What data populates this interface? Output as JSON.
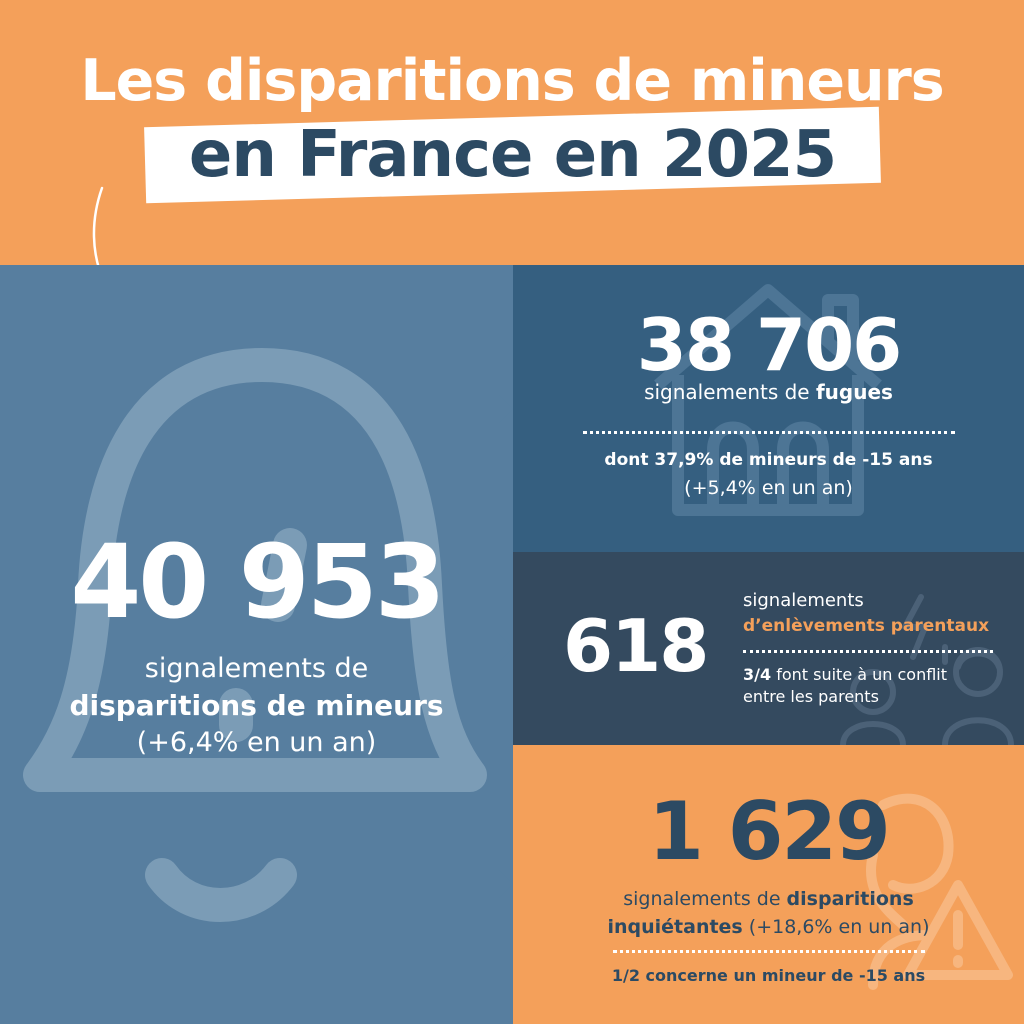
{
  "colors": {
    "orange": "#f4a05a",
    "navy": "#2c4a63",
    "left_blue": "#577e9f",
    "panel_blue": "#355f80",
    "panel_dark": "#344a5f",
    "white": "#ffffff"
  },
  "header": {
    "title_line1": "Les disparitions de mineurs",
    "title_line2": "en France en 2025"
  },
  "left": {
    "number": "40 953",
    "label_line1": "signalements de",
    "label_line2": "disparitions de mineurs",
    "change": "(+6,4% en un an)",
    "icon": "bell-icon"
  },
  "fugues": {
    "number": "38 706",
    "label_prefix": "signalements de ",
    "label_bold": "fugues",
    "detail": "dont 37,9% de mineurs de -15 ans",
    "change": "(+5,4% en un an)",
    "icon": "house-icon"
  },
  "enlevements": {
    "number": "618",
    "label_line1": "signalements",
    "label_line2": "d’enlèvements parentaux",
    "detail_bold": "3/4",
    "detail_rest": " font suite à un conflit entre les parents",
    "icon": "parents-conflict-icon"
  },
  "inquietantes": {
    "number": "1 629",
    "label_prefix": "signalements de ",
    "label_bold1": "disparitions",
    "label_bold2": "inquiétantes",
    "label_suffix": " (+18,6% en un an)",
    "detail": "1/2 concerne un mineur de -15 ans",
    "icon": "warning-person-icon"
  }
}
